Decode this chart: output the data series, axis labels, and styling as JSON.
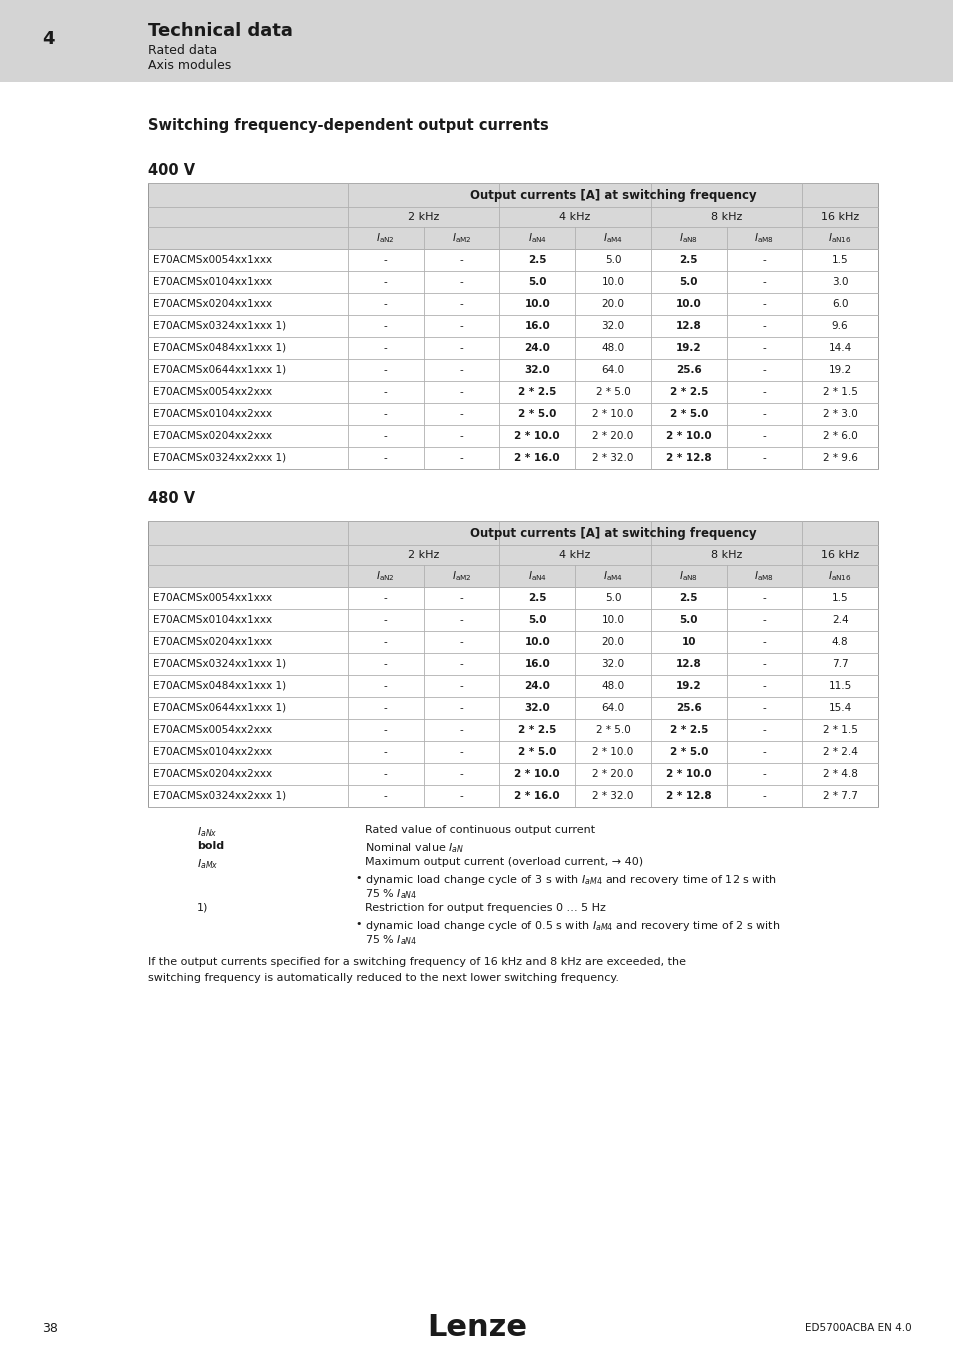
{
  "header_bg": "#d4d4d4",
  "page_bg": "#ffffff",
  "title_number": "4",
  "title_main": "Technical data",
  "title_sub1": "Rated data",
  "title_sub2": "Axis modules",
  "section_title": "Switching frequency-dependent output currents",
  "table400_title": "400 V",
  "table480_title": "480 V",
  "table_header_row1": "Output currents [A] at switching frequency",
  "table_header_row2": [
    "2 kHz",
    "4 kHz",
    "8 kHz",
    "16 kHz"
  ],
  "col_labels": [
    "IaN2",
    "IaM2",
    "IaN4",
    "IaM4",
    "IaN8",
    "IaM8",
    "IaN16"
  ],
  "table400_rows": [
    [
      "E70ACMSx0054xx1xxx",
      "-",
      "-",
      "2.5",
      "5.0",
      "2.5",
      "-",
      "1.5"
    ],
    [
      "E70ACMSx0104xx1xxx",
      "-",
      "-",
      "5.0",
      "10.0",
      "5.0",
      "-",
      "3.0"
    ],
    [
      "E70ACMSx0204xx1xxx",
      "-",
      "-",
      "10.0",
      "20.0",
      "10.0",
      "-",
      "6.0"
    ],
    [
      "E70ACMSx0324xx1xxx 1)",
      "-",
      "-",
      "16.0",
      "32.0",
      "12.8",
      "-",
      "9.6"
    ],
    [
      "E70ACMSx0484xx1xxx 1)",
      "-",
      "-",
      "24.0",
      "48.0",
      "19.2",
      "-",
      "14.4"
    ],
    [
      "E70ACMSx0644xx1xxx 1)",
      "-",
      "-",
      "32.0",
      "64.0",
      "25.6",
      "-",
      "19.2"
    ],
    [
      "E70ACMSx0054xx2xxx",
      "-",
      "-",
      "2 * 2.5",
      "2 * 5.0",
      "2 * 2.5",
      "-",
      "2 * 1.5"
    ],
    [
      "E70ACMSx0104xx2xxx",
      "-",
      "-",
      "2 * 5.0",
      "2 * 10.0",
      "2 * 5.0",
      "-",
      "2 * 3.0"
    ],
    [
      "E70ACMSx0204xx2xxx",
      "-",
      "-",
      "2 * 10.0",
      "2 * 20.0",
      "2 * 10.0",
      "-",
      "2 * 6.0"
    ],
    [
      "E70ACMSx0324xx2xxx 1)",
      "-",
      "-",
      "2 * 16.0",
      "2 * 32.0",
      "2 * 12.8",
      "-",
      "2 * 9.6"
    ]
  ],
  "table480_rows": [
    [
      "E70ACMSx0054xx1xxx",
      "-",
      "-",
      "2.5",
      "5.0",
      "2.5",
      "-",
      "1.5"
    ],
    [
      "E70ACMSx0104xx1xxx",
      "-",
      "-",
      "5.0",
      "10.0",
      "5.0",
      "-",
      "2.4"
    ],
    [
      "E70ACMSx0204xx1xxx",
      "-",
      "-",
      "10.0",
      "20.0",
      "10",
      "-",
      "4.8"
    ],
    [
      "E70ACMSx0324xx1xxx 1)",
      "-",
      "-",
      "16.0",
      "32.0",
      "12.8",
      "-",
      "7.7"
    ],
    [
      "E70ACMSx0484xx1xxx 1)",
      "-",
      "-",
      "24.0",
      "48.0",
      "19.2",
      "-",
      "11.5"
    ],
    [
      "E70ACMSx0644xx1xxx 1)",
      "-",
      "-",
      "32.0",
      "64.0",
      "25.6",
      "-",
      "15.4"
    ],
    [
      "E70ACMSx0054xx2xxx",
      "-",
      "-",
      "2 * 2.5",
      "2 * 5.0",
      "2 * 2.5",
      "-",
      "2 * 1.5"
    ],
    [
      "E70ACMSx0104xx2xxx",
      "-",
      "-",
      "2 * 5.0",
      "2 * 10.0",
      "2 * 5.0",
      "-",
      "2 * 2.4"
    ],
    [
      "E70ACMSx0204xx2xxx",
      "-",
      "-",
      "2 * 10.0",
      "2 * 20.0",
      "2 * 10.0",
      "-",
      "2 * 4.8"
    ],
    [
      "E70ACMSx0324xx2xxx 1)",
      "-",
      "-",
      "2 * 16.0",
      "2 * 32.0",
      "2 * 12.8",
      "-",
      "2 * 7.7"
    ]
  ],
  "page_number": "38",
  "doc_ref": "ED5700ACBA EN 4.0",
  "logo_text": "Lenze",
  "fig_w": 9.54,
  "fig_h": 13.5,
  "dpi": 100
}
